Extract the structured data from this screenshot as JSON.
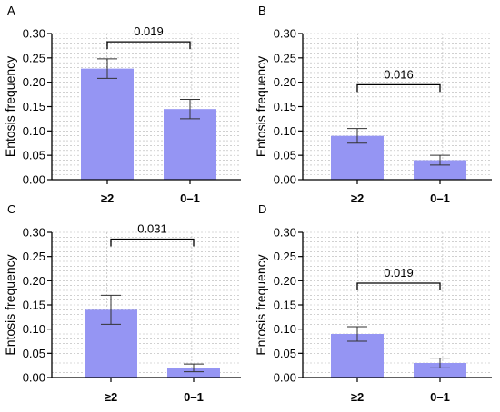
{
  "chart_data": [
    {
      "type": "bar",
      "panel_label": "A",
      "ylabel": "Entosis frequency",
      "ylim": [
        0,
        0.3
      ],
      "yticks": [
        "0.00",
        "0.05",
        "0.10",
        "0.15",
        "0.20",
        "0.25",
        "0.30"
      ],
      "categories": [
        "≥2",
        "0–1"
      ],
      "values": [
        0.228,
        0.145
      ],
      "errors": [
        0.02,
        0.02
      ],
      "grid": true,
      "significance": {
        "text": "0.019",
        "y": 0.283
      }
    },
    {
      "type": "bar",
      "panel_label": "B",
      "ylabel": "Entosis frequency",
      "ylim": [
        0,
        0.3
      ],
      "yticks": [
        "0.00",
        "0.05",
        "0.10",
        "0.15",
        "0.20",
        "0.25",
        "0.30"
      ],
      "categories": [
        "≥2",
        "0–1"
      ],
      "values": [
        0.09,
        0.04
      ],
      "errors": [
        0.015,
        0.01
      ],
      "grid": true,
      "significance": {
        "text": "0.016",
        "y": 0.195
      }
    },
    {
      "type": "bar",
      "panel_label": "C",
      "ylabel": "Entosis frequency",
      "ylim": [
        0,
        0.3
      ],
      "yticks": [
        "0.00",
        "0.05",
        "0.10",
        "0.15",
        "0.20",
        "0.25",
        "0.30"
      ],
      "categories": [
        "≥2",
        "0–1"
      ],
      "values": [
        0.14,
        0.02
      ],
      "errors": [
        0.03,
        0.008
      ],
      "grid": true,
      "significance": {
        "text": "0.031",
        "y": 0.286
      }
    },
    {
      "type": "bar",
      "panel_label": "D",
      "ylabel": "Entosis frequency",
      "ylim": [
        0,
        0.3
      ],
      "yticks": [
        "0.00",
        "0.05",
        "0.10",
        "0.15",
        "0.20",
        "0.25",
        "0.30"
      ],
      "categories": [
        "≥2",
        "0–1"
      ],
      "values": [
        0.09,
        0.03
      ],
      "errors": [
        0.015,
        0.01
      ],
      "grid": true,
      "significance": {
        "text": "0.019",
        "y": 0.195
      }
    }
  ],
  "colors": {
    "bar": "#9595F3",
    "axis": "#000000",
    "grid": "#B5B5B5"
  }
}
